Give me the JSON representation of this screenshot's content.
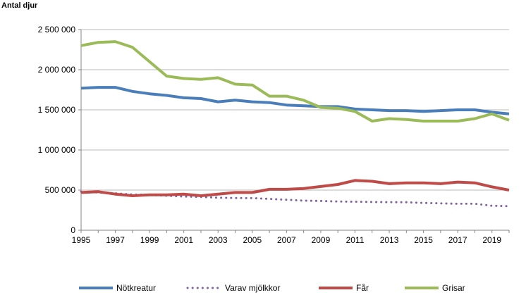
{
  "chart_data": {
    "type": "line",
    "title": "",
    "ylabel": "Antal djur",
    "xlabel": "",
    "ylim": [
      0,
      2500000
    ],
    "xlim": [
      1995,
      2020
    ],
    "grid": true,
    "legend_position": "bottom",
    "y_ticks": [
      {
        "value": 0,
        "label": "0"
      },
      {
        "value": 500000,
        "label": "500 000"
      },
      {
        "value": 1000000,
        "label": "1 000 000"
      },
      {
        "value": 1500000,
        "label": "1 500 000"
      },
      {
        "value": 2000000,
        "label": "2 000 000"
      },
      {
        "value": 2500000,
        "label": "2 500 000"
      }
    ],
    "x_ticks": [
      {
        "value": 1995,
        "label": "1995"
      },
      {
        "value": 1997,
        "label": "1997"
      },
      {
        "value": 1999,
        "label": "1999"
      },
      {
        "value": 2001,
        "label": "2001"
      },
      {
        "value": 2003,
        "label": "2003"
      },
      {
        "value": 2005,
        "label": "2005"
      },
      {
        "value": 2007,
        "label": "2007"
      },
      {
        "value": 2009,
        "label": "2009"
      },
      {
        "value": 2011,
        "label": "2011"
      },
      {
        "value": 2013,
        "label": "2013"
      },
      {
        "value": 2015,
        "label": "2015"
      },
      {
        "value": 2017,
        "label": "2017"
      },
      {
        "value": 2019,
        "label": "2019"
      }
    ],
    "x": [
      1995,
      1996,
      1997,
      1998,
      1999,
      2000,
      2001,
      2002,
      2003,
      2004,
      2005,
      2006,
      2007,
      2008,
      2009,
      2010,
      2011,
      2012,
      2013,
      2014,
      2015,
      2016,
      2017,
      2018,
      2019,
      2020
    ],
    "series": [
      {
        "name": "Nötkreatur",
        "color": "#4a7ebb",
        "dash": "solid",
        "values": [
          1770000,
          1780000,
          1780000,
          1730000,
          1700000,
          1680000,
          1650000,
          1640000,
          1600000,
          1620000,
          1600000,
          1590000,
          1560000,
          1550000,
          1540000,
          1540000,
          1510000,
          1500000,
          1490000,
          1490000,
          1480000,
          1490000,
          1500000,
          1500000,
          1470000,
          1450000
        ]
      },
      {
        "name": "Varav mjölkkor",
        "color": "#8064a2",
        "dash": "dotted",
        "values": [
          480000,
          470000,
          460000,
          445000,
          440000,
          430000,
          420000,
          415000,
          405000,
          402000,
          400000,
          390000,
          380000,
          368000,
          365000,
          358000,
          355000,
          352000,
          350000,
          348000,
          340000,
          335000,
          330000,
          330000,
          305000,
          300000
        ]
      },
      {
        "name": "Får",
        "color": "#be4b48",
        "dash": "solid",
        "values": [
          470000,
          480000,
          450000,
          430000,
          440000,
          440000,
          450000,
          430000,
          450000,
          470000,
          470000,
          510000,
          510000,
          520000,
          545000,
          570000,
          620000,
          610000,
          580000,
          590000,
          590000,
          580000,
          600000,
          590000,
          540000,
          500000
        ]
      },
      {
        "name": "Grisar",
        "color": "#9bbb59",
        "dash": "solid",
        "values": [
          2300000,
          2340000,
          2350000,
          2280000,
          2100000,
          1920000,
          1890000,
          1880000,
          1900000,
          1820000,
          1810000,
          1670000,
          1670000,
          1620000,
          1530000,
          1520000,
          1480000,
          1360000,
          1390000,
          1380000,
          1360000,
          1360000,
          1360000,
          1390000,
          1450000,
          1370000
        ]
      }
    ]
  }
}
